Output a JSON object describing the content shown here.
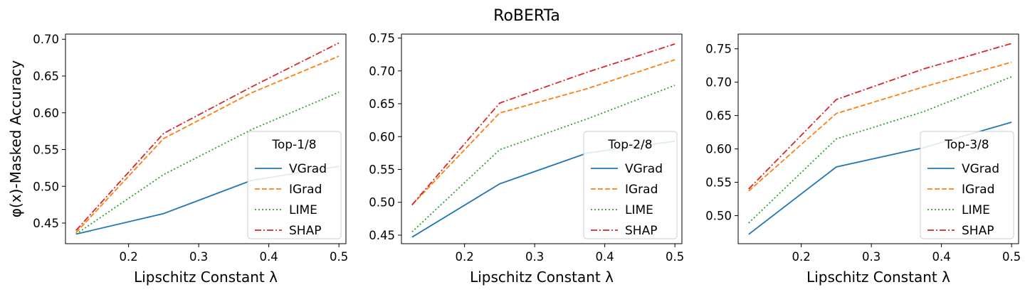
{
  "figure": {
    "suptitle": "RoBERTa"
  },
  "colors": {
    "VGrad": "#1f77b4",
    "IGrad": "#ff7f0e",
    "LIME": "#2ca02c",
    "SHAP": "#d62728"
  },
  "chart_data": [
    {
      "type": "line",
      "xlabel": "Lipschitz Constant λ",
      "ylabel": "φ(x)-Masked Accuracy",
      "xlim": [
        0.11,
        0.51
      ],
      "ylim": [
        0.422,
        0.707
      ],
      "xticks": [
        0.2,
        0.3,
        0.4,
        0.5
      ],
      "yticks": [
        0.45,
        0.5,
        0.55,
        0.6,
        0.65,
        0.7
      ],
      "legend_title": "Top-1/8",
      "legend_position": "lower right",
      "x": [
        0.125,
        0.25,
        0.375,
        0.5
      ],
      "series": [
        {
          "name": "VGrad",
          "style": "solid",
          "values": [
            0.435,
            0.463,
            0.508,
            0.527
          ]
        },
        {
          "name": "IGrad",
          "style": "dashed",
          "values": [
            0.437,
            0.565,
            0.627,
            0.677
          ]
        },
        {
          "name": "LIME",
          "style": "dotted",
          "values": [
            0.435,
            0.516,
            0.577,
            0.628
          ]
        },
        {
          "name": "SHAP",
          "style": "dashdot",
          "values": [
            0.44,
            0.572,
            0.635,
            0.695
          ]
        }
      ]
    },
    {
      "type": "line",
      "xlabel": "Lipschitz Constant λ",
      "ylabel": "",
      "xlim": [
        0.11,
        0.51
      ],
      "ylim": [
        0.437,
        0.756
      ],
      "xticks": [
        0.2,
        0.3,
        0.4,
        0.5
      ],
      "yticks": [
        0.45,
        0.5,
        0.55,
        0.6,
        0.65,
        0.7,
        0.75
      ],
      "legend_title": "Top-2/8",
      "legend_position": "lower right",
      "x": [
        0.125,
        0.25,
        0.375,
        0.5
      ],
      "series": [
        {
          "name": "VGrad",
          "style": "solid",
          "values": [
            0.447,
            0.528,
            0.575,
            0.593
          ]
        },
        {
          "name": "IGrad",
          "style": "dashed",
          "values": [
            0.496,
            0.636,
            0.673,
            0.717
          ]
        },
        {
          "name": "LIME",
          "style": "dotted",
          "values": [
            0.455,
            0.58,
            0.627,
            0.678
          ]
        },
        {
          "name": "SHAP",
          "style": "dashdot",
          "values": [
            0.496,
            0.651,
            0.698,
            0.741
          ]
        }
      ]
    },
    {
      "type": "line",
      "xlabel": "Lipschitz Constant λ",
      "ylabel": "",
      "xlim": [
        0.11,
        0.51
      ],
      "ylim": [
        0.458,
        0.772
      ],
      "xticks": [
        0.2,
        0.3,
        0.4,
        0.5
      ],
      "yticks": [
        0.5,
        0.55,
        0.6,
        0.65,
        0.7,
        0.75
      ],
      "legend_title": "Top-3/8",
      "legend_position": "lower right",
      "x": [
        0.125,
        0.25,
        0.375,
        0.5
      ],
      "series": [
        {
          "name": "VGrad",
          "style": "solid",
          "values": [
            0.472,
            0.573,
            0.602,
            0.64
          ]
        },
        {
          "name": "IGrad",
          "style": "dashed",
          "values": [
            0.537,
            0.653,
            0.693,
            0.73
          ]
        },
        {
          "name": "LIME",
          "style": "dotted",
          "values": [
            0.489,
            0.615,
            0.656,
            0.708
          ]
        },
        {
          "name": "SHAP",
          "style": "dashdot",
          "values": [
            0.54,
            0.674,
            0.72,
            0.758
          ]
        }
      ]
    }
  ]
}
